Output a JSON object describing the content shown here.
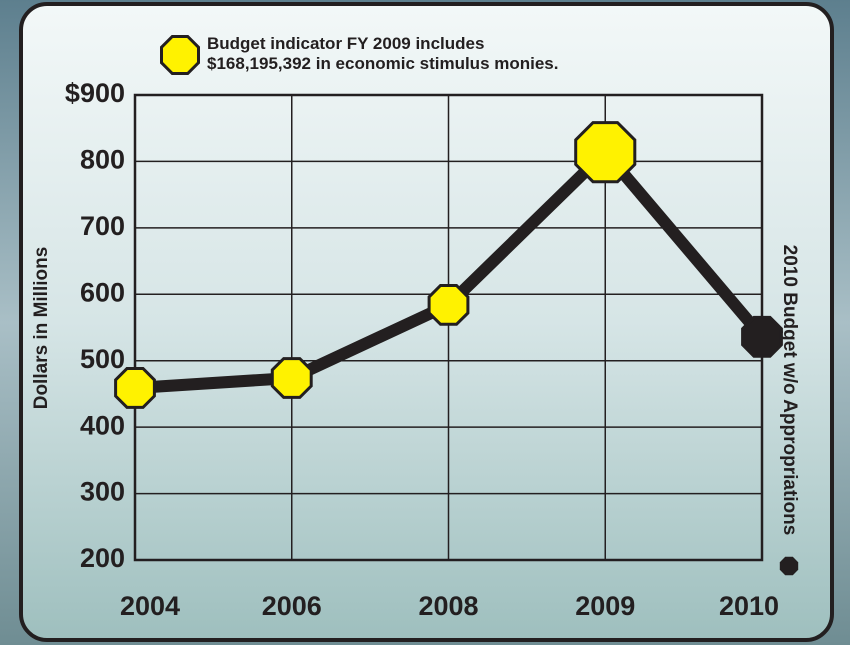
{
  "chart_data": {
    "type": "line",
    "annotation": [
      "Budget indicator FY 2009 includes",
      "$168,195,392 in economic stimulus monies."
    ],
    "y_label": "Dollars in Millions",
    "side_note": "2010 Budget w/o Appropriations",
    "categories": [
      "2004",
      "2006",
      "2008",
      "2009",
      "2010"
    ],
    "series": [
      {
        "name": null,
        "color": "#231f20",
        "values": [
          459,
          474,
          584,
          814,
          536
        ],
        "marker_colors": [
          "#fff200",
          "#fff200",
          "#fff200",
          "#fff200",
          "#231f20"
        ]
      }
    ],
    "ylim": [
      200,
      900
    ],
    "yticks": [
      200,
      300,
      400,
      500,
      600,
      700,
      800,
      {
        "value": 900,
        "label": "$900"
      }
    ],
    "grid": true
  }
}
